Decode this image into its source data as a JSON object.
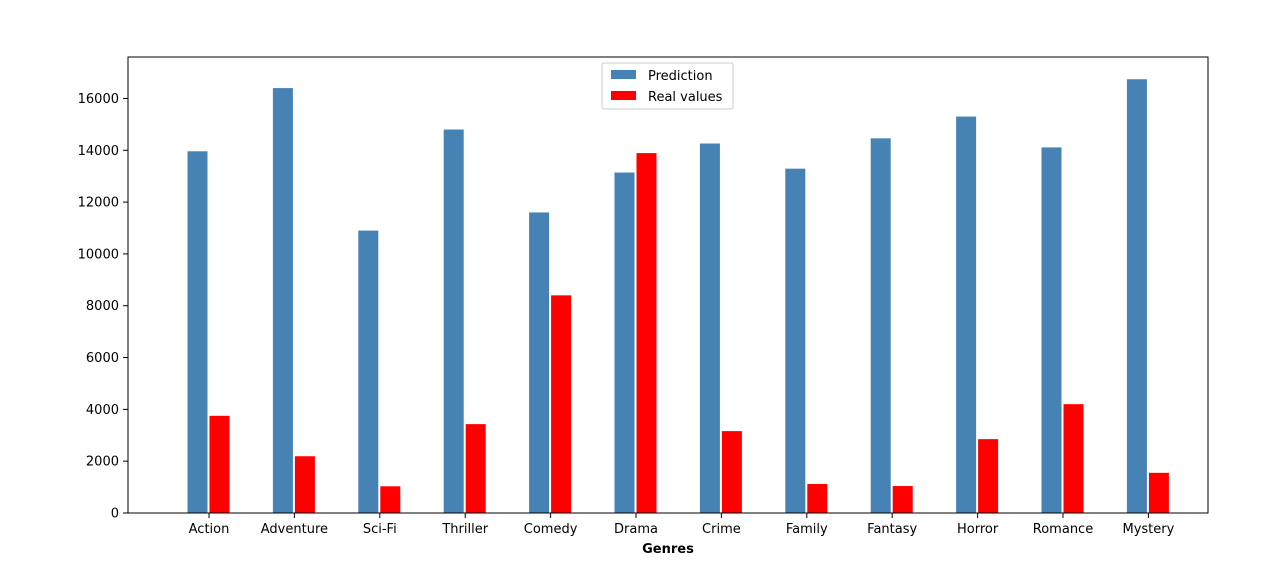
{
  "chart_data": {
    "type": "bar",
    "title": "",
    "xlabel": "Genres",
    "ylabel": "",
    "categories": [
      "Action",
      "Adventure",
      "Sci-Fi",
      "Thriller",
      "Comedy",
      "Drama",
      "Crime",
      "Family",
      "Fantasy",
      "Horror",
      "Romance",
      "Mystery"
    ],
    "series": [
      {
        "name": "Prediction",
        "color": "#4682b4",
        "values": [
          13980,
          16420,
          10920,
          14820,
          11620,
          13160,
          14280,
          13310,
          14480,
          15320,
          14130,
          16760
        ]
      },
      {
        "name": "Real values",
        "color": "#ff0000",
        "values": [
          3770,
          2210,
          1050,
          3450,
          8420,
          13910,
          3180,
          1140,
          1060,
          2870,
          4220,
          1570
        ]
      }
    ],
    "ylim": [
      0,
      17600
    ],
    "yticks": [
      0,
      2000,
      4000,
      6000,
      8000,
      10000,
      12000,
      14000,
      16000
    ],
    "grid": false,
    "legend_position": "top-center"
  }
}
